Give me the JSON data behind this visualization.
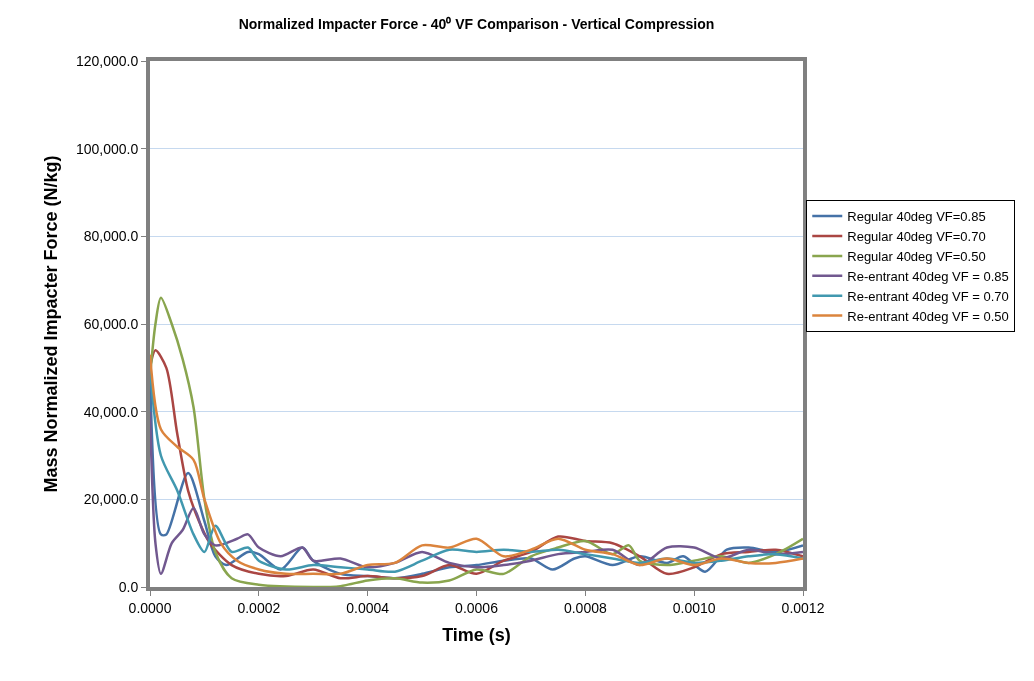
{
  "chart_data": {
    "type": "line",
    "title": "Normalized Impacter Force - 40⁰ VF Comparison - Vertical Compression",
    "xlabel": "Time (s)",
    "ylabel": "Mass Normalized Impacter Force (N/kg)",
    "xlim": [
      0,
      0.0012
    ],
    "ylim": [
      0,
      120000
    ],
    "xticks": [
      {
        "value": 0,
        "label": "0.0000"
      },
      {
        "value": 0.0002,
        "label": "0.0002"
      },
      {
        "value": 0.0004,
        "label": "0.0004"
      },
      {
        "value": 0.0006,
        "label": "0.0006"
      },
      {
        "value": 0.0008,
        "label": "0.0008"
      },
      {
        "value": 0.001,
        "label": "0.0010"
      },
      {
        "value": 0.0012,
        "label": "0.0012"
      }
    ],
    "yticks": [
      {
        "value": 0,
        "label": "0.0"
      },
      {
        "value": 20000,
        "label": "20,000.0"
      },
      {
        "value": 40000,
        "label": "40,000.0"
      },
      {
        "value": 60000,
        "label": "60,000.0"
      },
      {
        "value": 80000,
        "label": "80,000.0"
      },
      {
        "value": 100000,
        "label": "100,000.0"
      },
      {
        "value": 120000,
        "label": "120,000.0"
      }
    ],
    "grid": "y",
    "legend": "right",
    "marker": "none",
    "line_style": "solid",
    "series": [
      {
        "name": "Regular 40deg VF=0.85",
        "color": "#4572a7",
        "x": [
          0,
          2e-05,
          3e-05,
          7e-05,
          0.0001,
          0.00012,
          0.00014,
          0.00018,
          0.0002,
          0.00024,
          0.00028,
          0.0003,
          0.00035,
          0.0004,
          0.00045,
          0.0005,
          0.00055,
          0.0006,
          0.00065,
          0.0007,
          0.00074,
          0.00078,
          0.0008,
          0.00085,
          0.0009,
          0.00095,
          0.00098,
          0.00102,
          0.00106,
          0.0011,
          0.00115,
          0.0012
        ],
        "values": [
          50000,
          12000,
          12000,
          26000,
          15000,
          7000,
          5000,
          8000,
          7500,
          4000,
          9000,
          6000,
          3000,
          2500,
          2000,
          3000,
          4500,
          5000,
          6000,
          6500,
          4000,
          6500,
          7000,
          5000,
          7000,
          5500,
          7000,
          3500,
          8500,
          9000,
          8000,
          9500
        ]
      },
      {
        "name": "Regular 40deg VF=0.70",
        "color": "#aa4643",
        "x": [
          0,
          1e-05,
          3e-05,
          5e-05,
          7e-05,
          9e-05,
          0.00011,
          0.00015,
          0.0002,
          0.00025,
          0.0003,
          0.00035,
          0.0004,
          0.00045,
          0.0005,
          0.00055,
          0.0006,
          0.00065,
          0.0007,
          0.00075,
          0.0008,
          0.00085,
          0.0009,
          0.00095,
          0.001,
          0.00105,
          0.0011,
          0.00115,
          0.0012
        ],
        "values": [
          50000,
          54000,
          50000,
          35000,
          22000,
          15000,
          10000,
          5000,
          3000,
          2500,
          4000,
          2000,
          2500,
          2000,
          2500,
          5000,
          3000,
          6000,
          8000,
          11500,
          10500,
          10000,
          7000,
          3000,
          4500,
          7500,
          8000,
          8500,
          7000
        ]
      },
      {
        "name": "Regular 40deg VF=0.50",
        "color": "#89a54e",
        "x": [
          0,
          1e-05,
          2e-05,
          4e-05,
          6e-05,
          8e-05,
          0.0001,
          0.00012,
          0.00015,
          0.0002,
          0.0003,
          0.00035,
          0.0004,
          0.00045,
          0.0005,
          0.00055,
          0.0006,
          0.00065,
          0.0007,
          0.00075,
          0.0008,
          0.00085,
          0.00088,
          0.0009,
          0.00095,
          0.001,
          0.00105,
          0.0011,
          0.00115,
          0.0012
        ],
        "values": [
          48000,
          60000,
          66000,
          60000,
          52000,
          41000,
          20000,
          8000,
          2000,
          500,
          0,
          200,
          1500,
          2000,
          1000,
          1500,
          4000,
          3000,
          7000,
          9000,
          10500,
          7500,
          9500,
          6000,
          5000,
          6000,
          7000,
          5500,
          7500,
          11000
        ]
      },
      {
        "name": "Re-entrant 40deg VF = 0.85",
        "color": "#71588f",
        "x": [
          0,
          1e-05,
          2e-05,
          4e-05,
          6e-05,
          8e-05,
          0.0001,
          0.00012,
          0.00016,
          0.00018,
          0.0002,
          0.00024,
          0.00028,
          0.0003,
          0.00035,
          0.0004,
          0.00045,
          0.0005,
          0.00055,
          0.0006,
          0.00065,
          0.0007,
          0.00075,
          0.0008,
          0.00085,
          0.0009,
          0.00095,
          0.001,
          0.00105,
          0.0011,
          0.00115,
          0.0012
        ],
        "values": [
          40000,
          10000,
          3000,
          10000,
          13000,
          18000,
          12000,
          9500,
          11000,
          12000,
          9000,
          7000,
          9000,
          6000,
          6500,
          4500,
          5500,
          8000,
          5500,
          4500,
          5000,
          6000,
          7500,
          8000,
          8500,
          5000,
          9000,
          9000,
          6500,
          8500,
          7500,
          8000
        ]
      },
      {
        "name": "Re-entrant 40deg VF = 0.70",
        "color": "#4198af",
        "x": [
          0,
          2e-05,
          5e-05,
          8e-05,
          0.0001,
          0.00012,
          0.00015,
          0.00018,
          0.0002,
          0.00025,
          0.0003,
          0.00035,
          0.0004,
          0.00045,
          0.0005,
          0.00055,
          0.0006,
          0.00065,
          0.0007,
          0.00075,
          0.0008,
          0.00085,
          0.0009,
          0.00095,
          0.001,
          0.00105,
          0.0011,
          0.00115,
          0.0012
        ],
        "values": [
          50000,
          30000,
          22000,
          12000,
          8000,
          14000,
          8000,
          9000,
          6000,
          4000,
          5000,
          4500,
          4000,
          3500,
          6000,
          8500,
          8000,
          8500,
          8000,
          8500,
          7500,
          6500,
          5500,
          6500,
          5500,
          6000,
          7000,
          7500,
          6500
        ]
      },
      {
        "name": "Re-entrant 40deg VF = 0.50",
        "color": "#db843d",
        "x": [
          0,
          2e-05,
          5e-05,
          8e-05,
          0.0001,
          0.00013,
          0.00016,
          0.0002,
          0.00025,
          0.0003,
          0.00035,
          0.0004,
          0.00045,
          0.0005,
          0.00055,
          0.0006,
          0.00065,
          0.0007,
          0.00075,
          0.0008,
          0.00085,
          0.0009,
          0.00095,
          0.001,
          0.00105,
          0.0011,
          0.00115,
          0.0012
        ],
        "values": [
          53000,
          36000,
          32000,
          29000,
          20000,
          10000,
          6000,
          4000,
          3000,
          3000,
          3000,
          5000,
          5500,
          9500,
          9000,
          11000,
          7000,
          8500,
          11000,
          8500,
          7500,
          5000,
          6500,
          5000,
          6500,
          5500,
          5500,
          6500
        ]
      }
    ]
  }
}
